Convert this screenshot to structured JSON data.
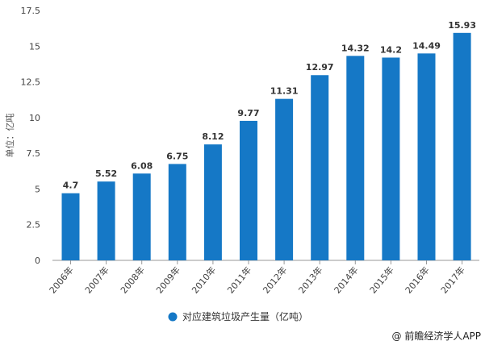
{
  "chart_data": {
    "type": "bar",
    "categories": [
      "2006年",
      "2007年",
      "2008年",
      "2009年",
      "2010年",
      "2011年",
      "2012年",
      "2013年",
      "2014年",
      "2015年",
      "2016年",
      "2017年"
    ],
    "series": [
      {
        "name": "对应建筑垃圾产生量（亿吨）",
        "values": [
          4.7,
          5.52,
          6.08,
          6.75,
          8.12,
          9.77,
          11.31,
          12.97,
          14.32,
          14.2,
          14.49,
          15.93
        ],
        "color": "#1578c6"
      }
    ],
    "ylabel": "单位：亿吨",
    "ylim": [
      0,
      17.5
    ],
    "yticks": [
      0,
      2.5,
      5,
      7.5,
      10,
      12.5,
      15,
      17.5
    ],
    "grid": false,
    "legend": "bottom-center"
  },
  "source": "@ 前瞻经济学人APP"
}
